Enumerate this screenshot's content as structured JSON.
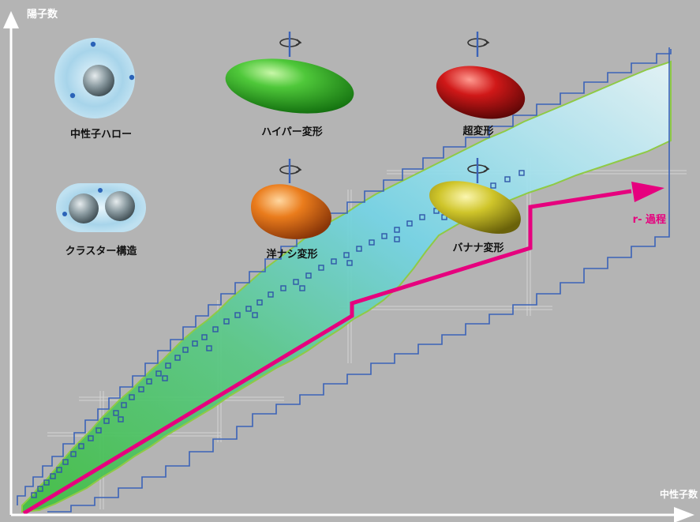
{
  "axes": {
    "y_label": "陽子数",
    "x_label": "中性子数"
  },
  "labels": {
    "halo": "中性子ハロー",
    "cluster": "クラスター構造",
    "hyper": "ハイパー変形",
    "pear": "洋ナシ変形",
    "super": "超変形",
    "banana": "バナナ変形",
    "r_process": "r- 過程"
  },
  "colors": {
    "background": "#b4b4b4",
    "axis": "#ffffff",
    "r_process": "#e6007e",
    "valley": "#3b63b8",
    "band_edge": "#8ccc3c",
    "hyper_shape": "#3ab52f",
    "pear_shape": "#e07820",
    "super_shape": "#c01414",
    "banana_shape": "#c8c020"
  },
  "icons": [
    "rotation-arrow-icon",
    "rotation-arrow-icon",
    "rotation-arrow-icon",
    "rotation-arrow-icon"
  ]
}
